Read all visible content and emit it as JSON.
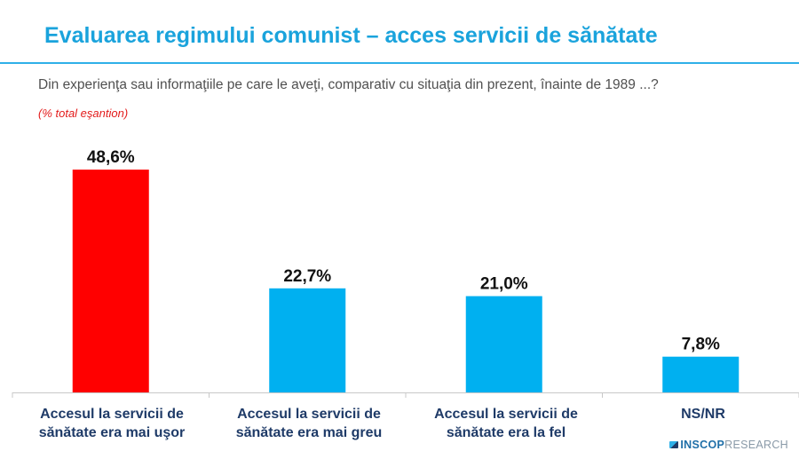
{
  "header": {
    "title": "Evaluarea regimului comunist – acces servicii de sănătate",
    "subtitle": "Din experienţa sau informaţiile pe care le aveţi, comparativ cu situaţia din prezent, înainte de 1989 ...?",
    "note": "(% total eşantion)"
  },
  "branding": {
    "logo_part1": "INSCOP",
    "logo_part2": "RESEARCH"
  },
  "colors": {
    "title": "#1aa3dc",
    "highlight_bar": "#ff0000",
    "bar": "#00b0f0",
    "category_text": "#1f3b68",
    "note_text": "#e31b1b"
  },
  "chart_data": {
    "type": "bar",
    "categories": [
      "Accesul la servicii de sănătate era mai uşor",
      "Accesul la servicii de sănătate era mai greu",
      "Accesul la servicii de sănătate era la fel",
      "NS/NR"
    ],
    "values": [
      48.6,
      22.7,
      21.0,
      7.8
    ],
    "value_labels": [
      "48,6%",
      "22,7%",
      "21,0%",
      "7,8%"
    ],
    "bar_colors": [
      "#ff0000",
      "#00b0f0",
      "#00b0f0",
      "#00b0f0"
    ],
    "title": "Evaluarea regimului comunist – acces servicii de sănătate",
    "xlabel": "",
    "ylabel": "",
    "ylim": [
      0,
      55
    ],
    "grid": false,
    "legend": "none"
  }
}
